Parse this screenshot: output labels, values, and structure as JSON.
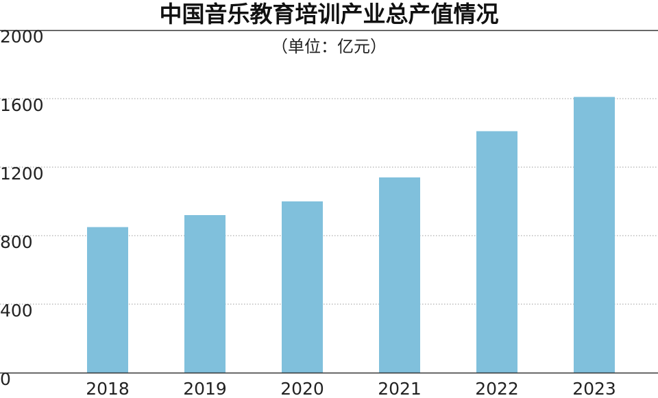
{
  "chart_data": {
    "type": "bar",
    "title": "中国音乐教育培训产业总产值情况",
    "subtitle": "（单位：亿元）",
    "categories": [
      "2018",
      "2019",
      "2020",
      "2021",
      "2022",
      "2023"
    ],
    "values": [
      850,
      920,
      1000,
      1140,
      1410,
      1610
    ],
    "yticks": [
      "0",
      "400",
      "800",
      "1200",
      "1600",
      "2000"
    ],
    "ylim": [
      0,
      2000
    ],
    "grid": true,
    "bar_color": "#80c0dc",
    "grid_color": "#9a9a9a"
  }
}
